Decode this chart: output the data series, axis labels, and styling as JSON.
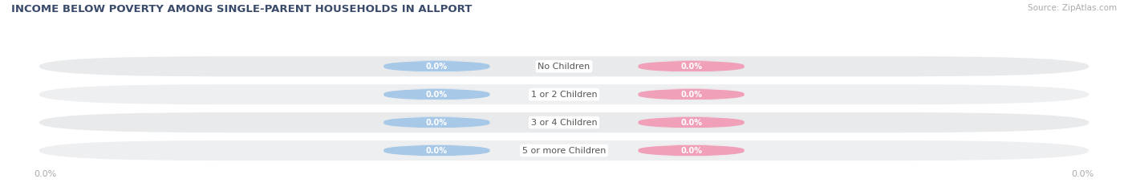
{
  "title": "INCOME BELOW POVERTY AMONG SINGLE-PARENT HOUSEHOLDS IN ALLPORT",
  "source": "Source: ZipAtlas.com",
  "categories": [
    "No Children",
    "1 or 2 Children",
    "3 or 4 Children",
    "5 or more Children"
  ],
  "father_values": [
    0.0,
    0.0,
    0.0,
    0.0
  ],
  "mother_values": [
    0.0,
    0.0,
    0.0,
    0.0
  ],
  "father_color": "#a8c8e8",
  "mother_color": "#f0a0b8",
  "bar_bg_color_odd": "#e8eaec",
  "bar_bg_color_even": "#eeeff1",
  "title_color": "#3a4a6b",
  "axis_label_color": "#aaaaaa",
  "source_color": "#aaaaaa",
  "background_color": "#ffffff",
  "label_text_color": "#555555",
  "pill_value_color": "#ffffff"
}
